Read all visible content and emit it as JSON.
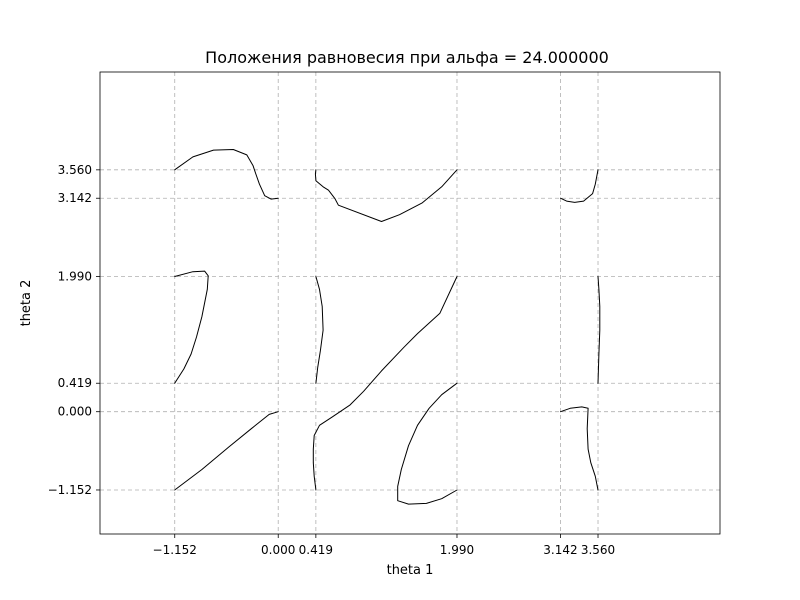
{
  "chart_data": {
    "type": "line",
    "title": "Положения равновесия при альфа = 24.000000",
    "xlabel": "theta 1",
    "ylabel": "theta 2",
    "xlim": [
      -1.984,
      4.918
    ],
    "ylim": [
      -1.8,
      5.0
    ],
    "grid": true,
    "x_ticks": [
      {
        "value": -1.152,
        "label": "−1.152"
      },
      {
        "value": 0.0,
        "label": "0.000"
      },
      {
        "value": 0.419,
        "label": "0.419"
      },
      {
        "value": 1.99,
        "label": "1.990"
      },
      {
        "value": 3.142,
        "label": "3.142"
      },
      {
        "value": 3.56,
        "label": "3.560"
      }
    ],
    "y_ticks": [
      {
        "value": -1.152,
        "label": "−1.152"
      },
      {
        "value": 0.0,
        "label": "0.000"
      },
      {
        "value": 0.419,
        "label": "0.419"
      },
      {
        "value": 1.99,
        "label": "1.990"
      },
      {
        "value": 3.142,
        "label": "3.142"
      },
      {
        "value": 3.56,
        "label": "3.560"
      }
    ],
    "series": [
      {
        "points": [
          [
            -1.152,
            3.56
          ],
          [
            -0.95,
            3.75
          ],
          [
            -0.72,
            3.85
          ],
          [
            -0.5,
            3.86
          ],
          [
            -0.35,
            3.78
          ],
          [
            -0.28,
            3.62
          ],
          [
            -0.25,
            3.5
          ],
          [
            -0.21,
            3.35
          ],
          [
            -0.15,
            3.18
          ],
          [
            -0.08,
            3.13
          ],
          [
            0.0,
            3.142
          ]
        ]
      },
      {
        "points": [
          [
            0.419,
            3.56
          ],
          [
            0.414,
            3.5
          ],
          [
            0.42,
            3.4
          ],
          [
            0.5,
            3.31
          ],
          [
            0.56,
            3.26
          ],
          [
            0.63,
            3.14
          ],
          [
            0.67,
            3.04
          ],
          [
            1.15,
            2.8
          ],
          [
            1.35,
            2.9
          ],
          [
            1.6,
            3.07
          ],
          [
            1.82,
            3.31
          ],
          [
            1.99,
            3.56
          ]
        ]
      },
      {
        "points": [
          [
            3.142,
            3.142
          ],
          [
            3.21,
            3.1
          ],
          [
            3.3,
            3.08
          ],
          [
            3.4,
            3.1
          ],
          [
            3.5,
            3.21
          ],
          [
            3.53,
            3.35
          ],
          [
            3.56,
            3.56
          ]
        ]
      },
      {
        "points": [
          [
            -1.152,
            1.99
          ],
          [
            -0.95,
            2.06
          ],
          [
            -0.82,
            2.07
          ],
          [
            -0.78,
            2.0
          ],
          [
            -0.79,
            1.8
          ],
          [
            -0.85,
            1.4
          ],
          [
            -0.91,
            1.1
          ],
          [
            -0.97,
            0.85
          ],
          [
            -1.05,
            0.63
          ],
          [
            -1.152,
            0.419
          ]
        ]
      },
      {
        "points": [
          [
            0.419,
            1.99
          ],
          [
            0.46,
            1.8
          ],
          [
            0.49,
            1.55
          ],
          [
            0.5,
            1.2
          ],
          [
            0.47,
            0.9
          ],
          [
            0.44,
            0.65
          ],
          [
            0.419,
            0.419
          ]
        ]
      },
      {
        "points": [
          [
            0.419,
            -1.152
          ],
          [
            0.4,
            -0.95
          ],
          [
            0.39,
            -0.75
          ],
          [
            0.39,
            -0.55
          ],
          [
            0.4,
            -0.35
          ],
          [
            0.46,
            -0.2
          ],
          [
            0.6,
            -0.08
          ],
          [
            0.8,
            0.1
          ],
          [
            0.95,
            0.3
          ],
          [
            1.15,
            0.6
          ],
          [
            1.4,
            0.95
          ],
          [
            1.55,
            1.15
          ],
          [
            1.8,
            1.45
          ],
          [
            1.99,
            1.99
          ]
        ]
      },
      {
        "points": [
          [
            3.56,
            1.99
          ],
          [
            3.57,
            1.8
          ],
          [
            3.58,
            1.55
          ],
          [
            3.58,
            1.2
          ],
          [
            3.57,
            0.85
          ],
          [
            3.56,
            0.419
          ]
        ]
      },
      {
        "points": [
          [
            -1.152,
            -1.152
          ],
          [
            -0.85,
            -0.85
          ],
          [
            -0.55,
            -0.52
          ],
          [
            -0.3,
            -0.25
          ],
          [
            -0.1,
            -0.04
          ],
          [
            0.0,
            0.0
          ]
        ]
      },
      {
        "points": [
          [
            1.99,
            -1.152
          ],
          [
            1.82,
            -1.28
          ],
          [
            1.65,
            -1.35
          ],
          [
            1.45,
            -1.36
          ],
          [
            1.33,
            -1.31
          ],
          [
            1.33,
            -1.1
          ],
          [
            1.37,
            -0.85
          ],
          [
            1.45,
            -0.5
          ],
          [
            1.55,
            -0.2
          ],
          [
            1.68,
            0.05
          ],
          [
            1.82,
            0.25
          ],
          [
            1.99,
            0.419
          ]
        ]
      },
      {
        "points": [
          [
            3.142,
            0.0
          ],
          [
            3.25,
            0.05
          ],
          [
            3.38,
            0.07
          ],
          [
            3.45,
            0.05
          ],
          [
            3.44,
            -0.25
          ],
          [
            3.45,
            -0.55
          ],
          [
            3.48,
            -0.75
          ],
          [
            3.53,
            -0.95
          ],
          [
            3.56,
            -1.152
          ]
        ]
      }
    ]
  }
}
